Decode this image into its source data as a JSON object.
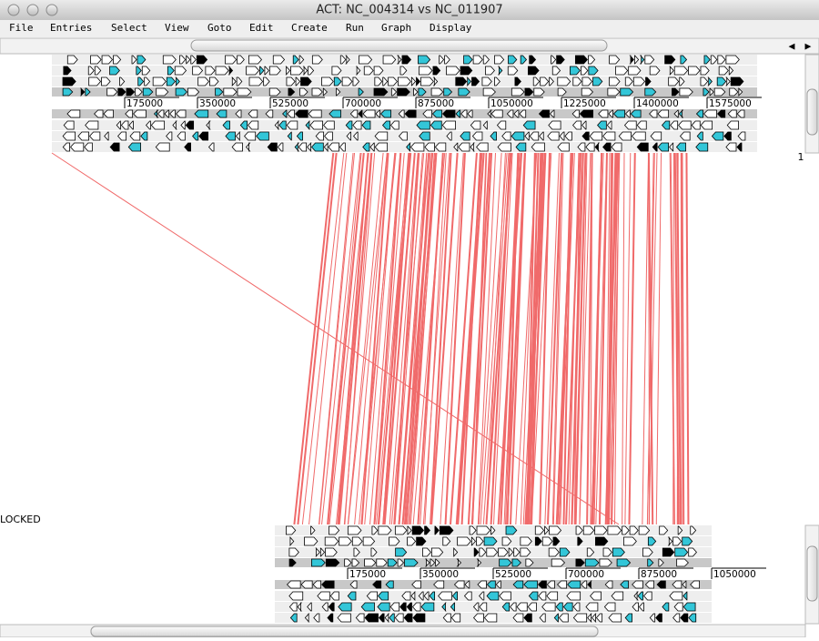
{
  "window": {
    "title": "ACT: NC_004314 vs NC_011907"
  },
  "menu": [
    "File",
    "Entries",
    "Select",
    "View",
    "Goto",
    "Edit",
    "Create",
    "Run",
    "Graph",
    "Display"
  ],
  "top_ruler": {
    "ticks": [
      175000,
      350000,
      525000,
      700000,
      875000,
      1050000,
      1225000,
      1400000,
      1575000
    ]
  },
  "bottom_ruler": {
    "ticks": [
      175000,
      350000,
      525000,
      700000,
      875000,
      1050000
    ]
  },
  "status": {
    "locked": "LOCKED",
    "score": "1"
  }
}
